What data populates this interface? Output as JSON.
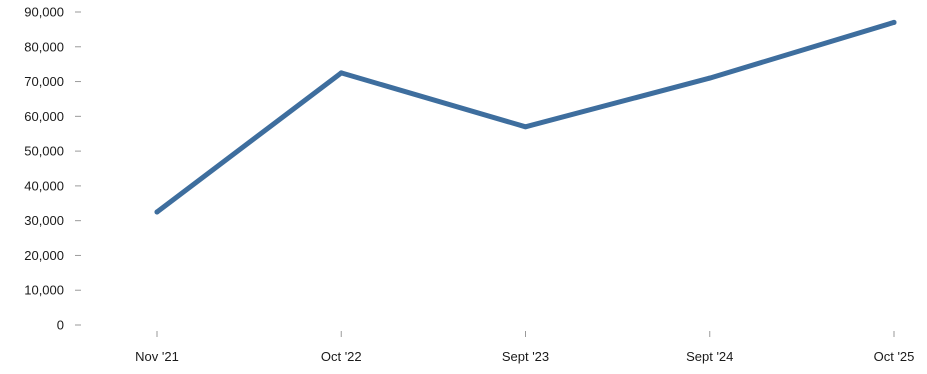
{
  "chart_data": {
    "type": "line",
    "title": "",
    "xlabel": "",
    "ylabel": "",
    "categories": [
      "Nov '21",
      "Oct '22",
      "Sept '23",
      "Sept '24",
      "Oct '25"
    ],
    "series": [
      {
        "values": [
          32500,
          72500,
          57000,
          71000,
          87000
        ],
        "color": "#3e6e9e"
      }
    ],
    "ylim": [
      0,
      90000
    ],
    "yticks": [
      0,
      10000,
      20000,
      30000,
      40000,
      50000,
      60000,
      70000,
      80000,
      90000
    ],
    "ytick_labels": [
      "0",
      "10,000",
      "20,000",
      "30,000",
      "40,000",
      "50,000",
      "60,000",
      "70,000",
      "80,000",
      "90,000"
    ],
    "grid": false,
    "legend": "none"
  }
}
